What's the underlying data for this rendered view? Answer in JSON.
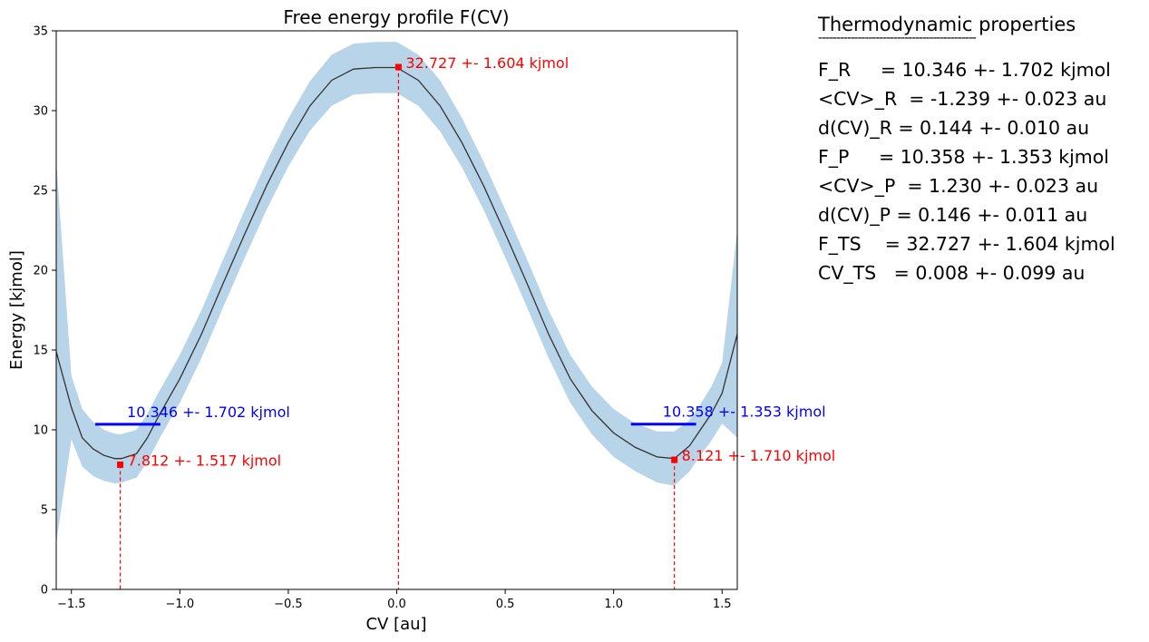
{
  "chart_data": {
    "type": "line",
    "title": "Free energy profile F(CV)",
    "xlabel": "CV [au]",
    "ylabel": "Energy [kjmol]",
    "xlim": [
      -1.57,
      1.57
    ],
    "ylim": [
      0,
      35
    ],
    "xticks": [
      -1.5,
      -1.0,
      -0.5,
      0.0,
      0.5,
      1.0,
      1.5
    ],
    "xtick_labels": [
      "−1.5",
      "−1.0",
      "−0.5",
      "0.0",
      "0.5",
      "1.0",
      "1.5"
    ],
    "yticks": [
      0,
      5,
      10,
      15,
      20,
      25,
      30,
      35
    ],
    "ytick_labels": [
      "0",
      "5",
      "10",
      "15",
      "20",
      "25",
      "30",
      "35"
    ],
    "series": [
      {
        "name": "F(CV)",
        "color": "#333333",
        "band_color": "#b7d4e8",
        "x": [
          -1.57,
          -1.5,
          -1.45,
          -1.4,
          -1.35,
          -1.3,
          -1.27,
          -1.2,
          -1.15,
          -1.1,
          -1.0,
          -0.9,
          -0.8,
          -0.7,
          -0.6,
          -0.5,
          -0.4,
          -0.3,
          -0.2,
          -0.1,
          0.0,
          0.1,
          0.2,
          0.3,
          0.4,
          0.5,
          0.6,
          0.7,
          0.8,
          0.9,
          1.0,
          1.1,
          1.2,
          1.28,
          1.35,
          1.4,
          1.45,
          1.5,
          1.57
        ],
        "y": [
          14.9,
          11.4,
          9.5,
          8.8,
          8.4,
          8.2,
          8.2,
          8.5,
          9.5,
          10.8,
          13.2,
          16.0,
          19.2,
          22.3,
          25.3,
          28.0,
          30.3,
          31.9,
          32.6,
          32.7,
          32.7,
          31.9,
          30.3,
          28.0,
          25.3,
          22.3,
          19.2,
          16.0,
          13.2,
          11.2,
          9.8,
          8.9,
          8.3,
          8.2,
          9.0,
          10.0,
          11.0,
          12.3,
          16.0
        ],
        "err": [
          12.0,
          2.0,
          1.8,
          1.7,
          1.6,
          1.55,
          1.52,
          1.5,
          1.5,
          1.5,
          1.5,
          1.5,
          1.5,
          1.5,
          1.5,
          1.5,
          1.55,
          1.6,
          1.6,
          1.6,
          1.6,
          1.6,
          1.6,
          1.55,
          1.5,
          1.5,
          1.5,
          1.5,
          1.5,
          1.5,
          1.5,
          1.5,
          1.6,
          1.7,
          1.6,
          1.6,
          1.7,
          1.9,
          6.5
        ]
      }
    ],
    "points": [
      {
        "name": "R min",
        "x": -1.275,
        "y": 7.812,
        "label": "7.812 +- 1.517 kjmol",
        "color": "#ff0000"
      },
      {
        "name": "TS",
        "x": 0.008,
        "y": 32.727,
        "label": "32.727 +- 1.604 kjmol",
        "color": "#ff0000"
      },
      {
        "name": "P min",
        "x": 1.28,
        "y": 8.121,
        "label": "8.121 +- 1.710 kjmol",
        "color": "#ff0000"
      }
    ],
    "levels": [
      {
        "name": "F_R",
        "x0": -1.39,
        "x1": -1.09,
        "y": 10.346,
        "label": "10.346 +- 1.702 kjmol",
        "color": "#0000ff"
      },
      {
        "name": "F_P",
        "x0": 1.08,
        "x1": 1.38,
        "y": 10.358,
        "label": "10.358 +- 1.353 kjmol",
        "color": "#0000ff"
      }
    ]
  },
  "properties": {
    "title": "Thermodynamic properties",
    "underline": "--------------------------------------------",
    "lines": [
      "F_R     = 10.346 +- 1.702 kjmol",
      "<CV>_R  = -1.239 +- 0.023 au",
      "d(CV)_R = 0.144 +- 0.010 au",
      "F_P     = 10.358 +- 1.353 kjmol",
      "<CV>_P  = 1.230 +- 0.023 au",
      "d(CV)_P = 0.146 +- 0.011 au",
      "F_TS    = 32.727 +- 1.604 kjmol",
      "CV_TS   = 0.008 +- 0.099 au"
    ]
  }
}
